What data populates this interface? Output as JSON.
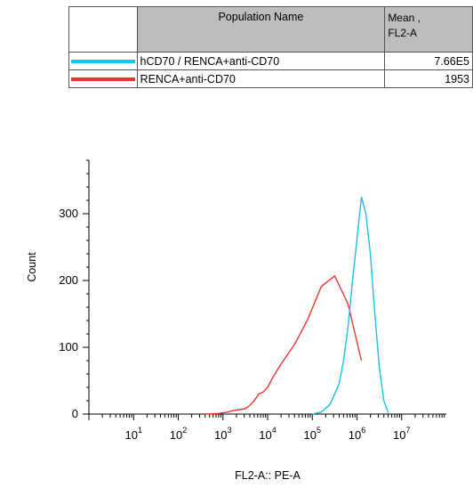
{
  "legend": {
    "header_name": "Population Name",
    "header_mean_line1": "Mean ,",
    "header_mean_line2": "FL2-A",
    "rows": [
      {
        "name": "hCD70 / RENCA+anti-CD70",
        "mean": "7.66E5",
        "color": "#19c3e6"
      },
      {
        "name": "RENCA+anti-CD70",
        "mean": "1953",
        "color": "#e8382f"
      }
    ]
  },
  "chart_data": {
    "type": "line",
    "xlabel": "FL2-A:: PE-A",
    "ylabel": "Count",
    "xscale": "log",
    "xlim": [
      1,
      100000000
    ],
    "ylim": [
      0,
      380
    ],
    "xticks": [
      {
        "base": "10",
        "exp": "1",
        "value": 10
      },
      {
        "base": "10",
        "exp": "2",
        "value": 100
      },
      {
        "base": "10",
        "exp": "3",
        "value": 1000
      },
      {
        "base": "10",
        "exp": "4",
        "value": 10000
      },
      {
        "base": "10",
        "exp": "5",
        "value": 100000
      },
      {
        "base": "10",
        "exp": "6",
        "value": 1000000
      },
      {
        "base": "10",
        "exp": "7",
        "value": 10000000
      }
    ],
    "yticks": [
      "0",
      "100",
      "200",
      "300"
    ],
    "series": [
      {
        "name": "RENCA+anti-CD70",
        "color": "#e8382f",
        "x": [
          398,
          794,
          1259,
          1585,
          1995,
          3162,
          3981,
          5012,
          6310,
          7943,
          10000,
          12589,
          19953,
          39811,
          79433,
          158489,
          316228,
          630957,
          1258925
        ],
        "y": [
          0,
          1,
          3,
          5,
          6,
          8,
          13,
          20,
          30,
          33,
          40,
          53,
          75,
          104,
          142,
          191,
          207,
          165,
          80
        ]
      },
      {
        "name": "hCD70 / RENCA+anti-CD70",
        "color": "#19c3e6",
        "x": [
          100000,
          158489,
          251189,
          398107,
          501187,
          630957,
          794328,
          1000000,
          1258925,
          1584893,
          1995262,
          2511886,
          3162278,
          3981072,
          5011872
        ],
        "y": [
          0,
          3,
          15,
          45,
          80,
          130,
          200,
          262,
          325,
          300,
          240,
          150,
          70,
          20,
          2
        ]
      }
    ]
  }
}
